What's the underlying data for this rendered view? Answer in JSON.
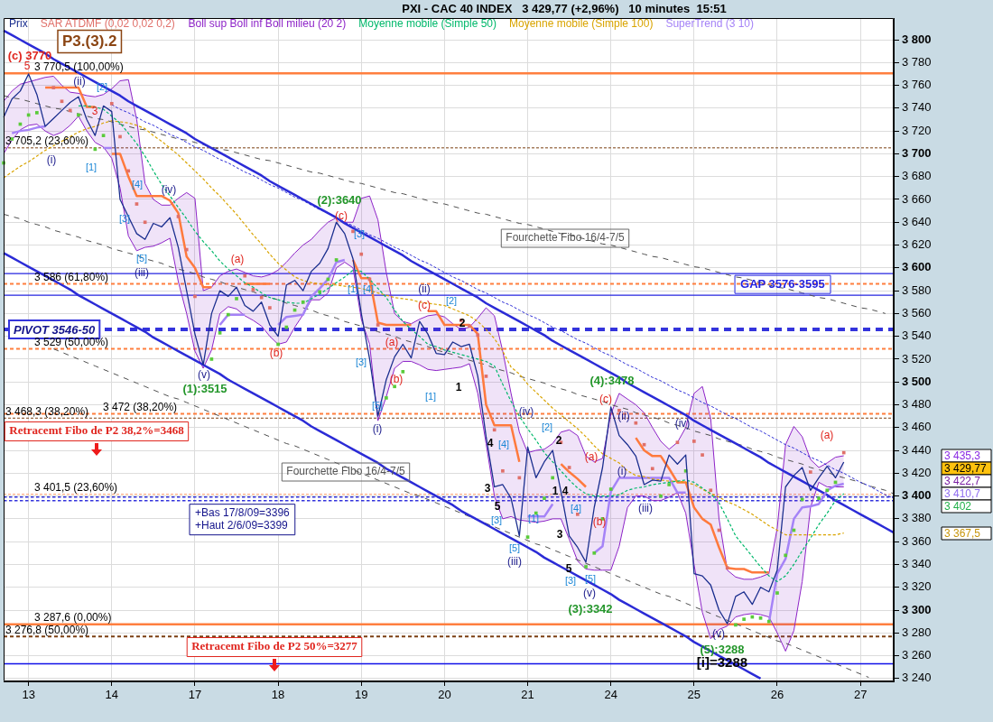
{
  "chart_data": {
    "type": "line",
    "title": "PXI - CAC 40 INDEX   3 429,77 (+2,96%)   10 minutes  15:51",
    "categories": [
      null,
      null,
      null,
      "13",
      null,
      null,
      null,
      null,
      null,
      null,
      null,
      null,
      null,
      "14",
      null,
      null,
      null,
      null,
      null,
      null,
      null,
      null,
      null,
      "17",
      null,
      null,
      null,
      null,
      null,
      null,
      null,
      null,
      null,
      "18",
      null,
      null,
      null,
      null,
      null,
      null,
      null,
      null,
      null,
      "19",
      null,
      null,
      null,
      null,
      null,
      null,
      null,
      null,
      null,
      "20",
      null,
      null,
      null,
      null,
      null,
      null,
      null,
      null,
      null,
      "21",
      null,
      null,
      null,
      null,
      null,
      null,
      null,
      null,
      null,
      "24",
      null,
      null,
      null,
      null,
      null,
      null,
      null,
      null,
      null,
      "25",
      null,
      null,
      null,
      null,
      null,
      null,
      null,
      null,
      null,
      "26",
      null,
      null,
      null,
      null,
      null,
      null,
      null,
      null,
      null,
      "27",
      null,
      null,
      null,
      null
    ],
    "ylim": [
      3237.5,
      3819
    ],
    "yticks": [
      {
        "value": 3240,
        "label": "3 240"
      },
      {
        "value": 3260,
        "label": "3 260"
      },
      {
        "value": 3280,
        "label": "3 280"
      },
      {
        "value": 3300,
        "label": "3 300"
      },
      {
        "value": 3320,
        "label": "3 320"
      },
      {
        "value": 3340,
        "label": "3 340"
      },
      {
        "value": 3360,
        "label": "3 360"
      },
      {
        "value": 3380,
        "label": "3 380"
      },
      {
        "value": 3400,
        "label": "3 400"
      },
      {
        "value": 3420,
        "label": "3 420"
      },
      {
        "value": 3440,
        "label": "3 440"
      },
      {
        "value": 3460,
        "label": "3 460"
      },
      {
        "value": 3480,
        "label": "3 480"
      },
      {
        "value": 3500,
        "label": "3 500"
      },
      {
        "value": 3520,
        "label": "3 520"
      },
      {
        "value": 3540,
        "label": "3 540"
      },
      {
        "value": 3560,
        "label": "3 560"
      },
      {
        "value": 3580,
        "label": "3 580"
      },
      {
        "value": 3600,
        "label": "3 600"
      },
      {
        "value": 3620,
        "label": "3 620"
      },
      {
        "value": 3640,
        "label": "3 640"
      },
      {
        "value": 3660,
        "label": "3 660"
      },
      {
        "value": 3680,
        "label": "3 680"
      },
      {
        "value": 3700,
        "label": "3 700"
      },
      {
        "value": 3720,
        "label": "3 720"
      },
      {
        "value": 3740,
        "label": "3 740"
      },
      {
        "value": 3760,
        "label": "3 760"
      },
      {
        "value": 3780,
        "label": "3 780"
      },
      {
        "value": 3800,
        "label": "3 800"
      }
    ],
    "grid": true,
    "legend": "top left",
    "marker": "none",
    "series": [
      {
        "name": "Prix",
        "color": "#1b2f8f",
        "values": [
          3732,
          3748,
          3755,
          3770,
          3752,
          3724,
          3731,
          3738,
          3745,
          3750,
          3730,
          3716,
          3742,
          3737,
          3660,
          3645,
          3630,
          3625,
          3639,
          3636,
          3644,
          3618,
          3580,
          3542,
          3515,
          3560,
          3580,
          3575,
          3583,
          3567,
          3562,
          3570,
          3550,
          3540,
          3585,
          3589,
          3580,
          3597,
          3604,
          3617,
          3640,
          3630,
          3608,
          3560,
          3520,
          3470,
          3502,
          3522,
          3533,
          3521,
          3553,
          3542,
          3525,
          3524,
          3535,
          3531,
          3533,
          3505,
          3452,
          3408,
          3410,
          3398,
          3365,
          3443,
          3416,
          3430,
          3440,
          3404,
          3365,
          3355,
          3342,
          3390,
          3425,
          3478,
          3453,
          3445,
          3435,
          3410,
          3414,
          3413,
          3436,
          3428,
          3436,
          3332,
          3330,
          3322,
          3300,
          3288,
          3312,
          3316,
          3305,
          3320,
          3316,
          3335,
          3408,
          3418,
          3425,
          3405,
          3416,
          3426,
          3416,
          3429.77,
          null,
          null,
          null,
          null,
          null,
          null
        ]
      },
      {
        "name": "SAR ATDMF (0,02 0,02 0,2)",
        "type": "scatter",
        "marker": "square",
        "color": "#e0706a",
        "values": [
          3692,
          3713,
          3726,
          3734,
          3736,
          null,
          3758,
          3746,
          3738,
          3734,
          null,
          3704,
          3716,
          3744,
          3715,
          3685,
          3656,
          3640,
          null,
          null,
          null,
          3645,
          3616,
          3575,
          null,
          3520,
          3543,
          3559,
          3573,
          3593,
          3581,
          3574,
          3565,
          3533,
          3548,
          3563,
          3570,
          null,
          3579,
          3590,
          3607,
          null,
          3632,
          3612,
          3590,
          3550,
          3486,
          3496,
          3509,
          null,
          null,
          null,
          null,
          null,
          null,
          3554,
          3549,
          3541,
          3505,
          3458,
          3422,
          null,
          3416,
          3364,
          3385,
          3398,
          3416,
          3447,
          3425,
          3384,
          3338,
          3350,
          3380,
          3406,
          3475,
          null,
          3464,
          3445,
          3424,
          3400,
          3410,
          3447,
          3422,
          3448,
          3436,
          3405,
          3370,
          3337,
          3287,
          3292,
          3294,
          3293,
          3290,
          3315,
          3348,
          3370,
          3397,
          3421,
          3398,
          3405,
          3412,
          3438,
          null,
          null,
          null,
          null,
          null,
          null
        ],
        "colors": [
          "#5acb3a",
          "#5acb3a",
          "#5acb3a",
          "#5acb3a",
          "#5acb3a",
          "#5acb3a",
          "#e0706a",
          "#e0706a",
          "#e0706a",
          "#5acb3a",
          "#5acb3a",
          "#5acb3a",
          "#5acb3a",
          "#e0706a",
          "#e0706a",
          "#e0706a",
          "#e0706a",
          "#e0706a",
          "#e0706a",
          "#e0706a",
          "#e0706a",
          "#e0706a",
          "#e0706a",
          "#e0706a",
          "#e0706a",
          "#5acb3a",
          "#5acb3a",
          "#5acb3a",
          "#5acb3a",
          "#e0706a",
          "#e0706a",
          "#e0706a",
          "#e0706a",
          "#5acb3a",
          "#5acb3a",
          "#5acb3a",
          "#5acb3a",
          "#5acb3a",
          "#5acb3a",
          "#5acb3a",
          "#5acb3a",
          "#e0706a",
          "#e0706a",
          "#e0706a",
          "#e0706a",
          "#e0706a",
          "#5acb3a",
          "#5acb3a",
          "#5acb3a",
          "#5acb3a",
          "#5acb3a",
          "#5acb3a",
          "#5acb3a",
          "#5acb3a",
          "#e0706a",
          "#e0706a",
          "#e0706a",
          "#e0706a",
          "#e0706a",
          "#e0706a",
          "#e0706a",
          "#5acb3a",
          "#e0706a",
          "#5acb3a",
          "#5acb3a",
          "#5acb3a",
          "#5acb3a",
          "#e0706a",
          "#e0706a",
          "#e0706a",
          "#5acb3a",
          "#5acb3a",
          "#5acb3a",
          "#5acb3a",
          "#e0706a",
          "#e0706a",
          "#e0706a",
          "#e0706a",
          "#e0706a",
          "#5acb3a",
          "#5acb3a",
          "#e0706a",
          "#5acb3a",
          "#e0706a",
          "#e0706a",
          "#e0706a",
          "#e0706a",
          "#e0706a",
          "#5acb3a",
          "#5acb3a",
          "#5acb3a",
          "#5acb3a",
          "#5acb3a",
          "#5acb3a",
          "#5acb3a",
          "#5acb3a",
          "#5acb3a",
          "#e0706a",
          "#5acb3a",
          "#5acb3a",
          "#5acb3a",
          "#e0706a",
          "#5acb3a",
          "#5acb3a",
          "#5acb3a",
          "#5acb3a",
          "#5acb3a",
          "#5acb3a"
        ]
      },
      {
        "name": "Boll sup Boll inf Boll milieu (20 2)",
        "color": "#8e24c8",
        "values": [
          3746,
          3755,
          3761,
          3763,
          3765,
          3767,
          3768,
          3760,
          3754,
          3753,
          3751,
          3750,
          3752,
          3757,
          3764,
          3765,
          3730,
          3674,
          3660,
          3655,
          3655,
          3661,
          3666,
          3661,
          3580,
          3583,
          3593,
          3597,
          3599,
          3596,
          3593,
          3592,
          3594,
          3598,
          3605,
          3613,
          3620,
          3625,
          3633,
          3640,
          3644,
          3640,
          3640,
          3661,
          3663,
          3642,
          3596,
          3560,
          3553,
          3551,
          3555,
          3558,
          3559,
          3557,
          3551,
          3546,
          3548,
          3556,
          3565,
          3558,
          3527,
          3490,
          3456,
          3438,
          3440,
          3441,
          3446,
          3456,
          3458,
          3453,
          3435,
          3430,
          3433,
          3472,
          3490,
          3485,
          3480,
          3473,
          3460,
          3448,
          3441,
          3447,
          3460,
          3490,
          3496,
          3468,
          3380,
          3335,
          3329,
          3327,
          3327,
          3329,
          3332,
          3372,
          3445,
          3461,
          3452,
          3432,
          3425,
          3429,
          3434,
          3435.3,
          null,
          null,
          null,
          null,
          null,
          null
        ],
        "upper": [
          3746,
          3755,
          3761,
          3763,
          3765,
          3767,
          3768,
          3760,
          3754,
          3753,
          3751,
          3750,
          3752,
          3757,
          3764,
          3765,
          3730,
          3674,
          3660,
          3655,
          3655,
          3661,
          3666,
          3661,
          3580,
          3583,
          3593,
          3597,
          3599,
          3596,
          3593,
          3592,
          3594,
          3598,
          3605,
          3613,
          3620,
          3625,
          3633,
          3640,
          3644,
          3640,
          3640,
          3661,
          3663,
          3642,
          3596,
          3560,
          3553,
          3551,
          3555,
          3558,
          3559,
          3557,
          3551,
          3546,
          3548,
          3556,
          3565,
          3558,
          3527,
          3490,
          3456,
          3438,
          3440,
          3441,
          3446,
          3456,
          3458,
          3453,
          3435,
          3430,
          3433,
          3472,
          3490,
          3485,
          3480,
          3473,
          3460,
          3448,
          3441,
          3447,
          3460,
          3490,
          3496,
          3468,
          3380,
          3335,
          3329,
          3327,
          3327,
          3329,
          3332,
          3372,
          3445,
          3461,
          3452,
          3432,
          3425,
          3429,
          3434,
          3435.3,
          null,
          null,
          null,
          null,
          null,
          null
        ],
        "lower": [
          3700,
          3712,
          3721,
          3725,
          3726,
          3720,
          3716,
          3719,
          3725,
          3733,
          3720,
          3710,
          3706,
          3696,
          3670,
          3628,
          3615,
          3618,
          3619,
          3622,
          3626,
          3588,
          3560,
          3527,
          3512,
          3528,
          3560,
          3566,
          3564,
          3558,
          3554,
          3549,
          3540,
          3533,
          3535,
          3548,
          3559,
          3572,
          3572,
          3578,
          3600,
          3605,
          3600,
          3555,
          3533,
          3466,
          3487,
          3512,
          3518,
          3518,
          3515,
          3511,
          3510,
          3511,
          3512,
          3513,
          3516,
          3490,
          3446,
          3400,
          3380,
          3382,
          3379,
          3378,
          3377,
          3378,
          3380,
          3380,
          3362,
          3343,
          3336,
          3335,
          3335,
          3335,
          3356,
          3390,
          3400,
          3400,
          3396,
          3396,
          3399,
          3403,
          3385,
          3340,
          3298,
          3275,
          3283,
          3286,
          3294,
          3296,
          3297,
          3296,
          3294,
          3280,
          3264,
          3282,
          3325,
          3390,
          3412,
          3408,
          3408,
          3408,
          null,
          null,
          null,
          null,
          null,
          null
        ]
      },
      {
        "color": "#8e24c8",
        "values": [
          3700,
          3712,
          3721,
          3725,
          3726,
          3720,
          3716,
          3719,
          3725,
          3733,
          3720,
          3710,
          3706,
          3696,
          3670,
          3628,
          3615,
          3618,
          3619,
          3622,
          3626,
          3588,
          3560,
          3527,
          3512,
          3528,
          3560,
          3566,
          3564,
          3558,
          3554,
          3549,
          3540,
          3533,
          3535,
          3548,
          3559,
          3572,
          3572,
          3578,
          3600,
          3605,
          3600,
          3555,
          3533,
          3466,
          3487,
          3512,
          3518,
          3518,
          3515,
          3511,
          3510,
          3511,
          3512,
          3513,
          3516,
          3490,
          3446,
          3400,
          3380,
          3382,
          3379,
          3378,
          3377,
          3378,
          3380,
          3380,
          3362,
          3343,
          3336,
          3335,
          3335,
          3335,
          3356,
          3390,
          3400,
          3400,
          3396,
          3396,
          3399,
          3403,
          3385,
          3340,
          3298,
          3275,
          3283,
          3286,
          3294,
          3296,
          3297,
          3296,
          3294,
          3280,
          3264,
          3282,
          3325,
          3390,
          3412,
          3408,
          3408,
          3408,
          null,
          null,
          null,
          null,
          null,
          null
        ]
      },
      {
        "name": "Moyenne mobile (Simple 50)",
        "color": "#00b86b",
        "line_style": "dotted",
        "values": [
          null,
          null,
          null,
          null,
          null,
          null,
          null,
          null,
          null,
          3742,
          3742,
          3741,
          3739,
          3733,
          3727,
          3718,
          3709,
          3698,
          3685,
          3673,
          3663,
          3653,
          3643,
          3632,
          3623,
          3615,
          3606,
          3599,
          3593,
          3587,
          3583,
          3578,
          3574,
          3572,
          3570,
          3569,
          3569,
          3573,
          3577,
          3582,
          3587,
          3592,
          3598,
          3597,
          3590,
          3582,
          3574,
          3563,
          3553,
          3546,
          3540,
          3533,
          3531,
          3528,
          3526,
          3524,
          3522,
          3520,
          3518,
          3514,
          3498,
          3483,
          3470,
          3459,
          3449,
          3438,
          3430,
          3422,
          3414,
          3407,
          3402,
          3400,
          3400,
          3400,
          3401,
          3405,
          3407,
          3408,
          3410,
          3411,
          3412,
          3413,
          3414,
          3412,
          3407,
          3402,
          3394,
          3380,
          3365,
          3356,
          3347,
          3338,
          3330,
          3325,
          3330,
          3340,
          3352,
          3363,
          3375,
          3385,
          3396,
          3402,
          null,
          null,
          null,
          null,
          null,
          null
        ]
      },
      {
        "name": "Moyenne mobile (Simple 100)",
        "color": "#d9a400",
        "line_style": "dotted",
        "values": [
          3679,
          3684,
          3689,
          3693,
          3698,
          3703,
          3707,
          3711,
          3715,
          3719,
          3722,
          3724,
          3727,
          3729,
          3728,
          3727,
          3725,
          3722,
          3716,
          3711,
          3705,
          3699,
          3692,
          3685,
          3678,
          3670,
          3663,
          3655,
          3647,
          3638,
          3629,
          3621,
          3612,
          3604,
          3598,
          3592,
          3589,
          3587,
          3586,
          3585,
          3585,
          3584,
          3583,
          3582,
          3580,
          3578,
          3576,
          3574,
          3573,
          3572,
          3570,
          3569,
          3568,
          3567,
          3564,
          3561,
          3558,
          3553,
          3546,
          3538,
          3527,
          3513,
          3507,
          3498,
          3491,
          3484,
          3477,
          3471,
          3465,
          3459,
          3452,
          3444,
          3437,
          3433,
          3429,
          3422,
          3418,
          3417,
          3415,
          3414,
          3413,
          3413,
          3412,
          3410,
          3406,
          3402,
          3399,
          3395,
          3392,
          3388,
          3384,
          3379,
          3374,
          3370,
          3366,
          3366,
          3366,
          3366,
          3366,
          3366,
          3366,
          3367.5,
          null,
          null,
          null,
          null,
          null,
          null
        ]
      },
      {
        "name": "SuperTrend (3 10)",
        "color": "#a583f7",
        "values": [
          null,
          3718,
          3720,
          3721,
          3723,
          3724,
          null,
          null,
          null,
          null,
          null,
          null,
          3705,
          3705,
          null,
          null,
          null,
          null,
          null,
          null,
          null,
          null,
          null,
          null,
          null,
          null,
          3550,
          3559,
          3559,
          3559,
          null,
          null,
          null,
          3550,
          3557,
          3558,
          3559,
          3575,
          3582,
          3590,
          3605,
          3607,
          null,
          null,
          null,
          null,
          null,
          null,
          null,
          null,
          null,
          null,
          null,
          null,
          null,
          null,
          null,
          null,
          null,
          null,
          null,
          null,
          null,
          3382,
          3382,
          3382,
          3393,
          null,
          null,
          null,
          null,
          3350,
          3356,
          3404,
          3416,
          3416,
          3416,
          3416,
          3416,
          3416,
          3416,
          3403,
          3403,
          null,
          null,
          null,
          null,
          null,
          null,
          null,
          null,
          null,
          3289,
          3332,
          3345,
          3380,
          3390,
          3391,
          3393,
          3405,
          3409,
          3410.7,
          null,
          null,
          null,
          null,
          null,
          null
        ]
      },
      {
        "color": "#ff7a3d",
        "values": [
          null,
          null,
          null,
          null,
          null,
          3758,
          3758,
          3758,
          3758,
          3758,
          3741,
          3741,
          null,
          3700,
          3700,
          3680,
          3663,
          3663,
          3663,
          3663,
          3659,
          3648,
          3610,
          3600,
          3583,
          3583,
          null,
          null,
          null,
          3586,
          3586,
          3586,
          3586,
          null,
          null,
          null,
          null,
          null,
          null,
          null,
          null,
          null,
          3607,
          3591,
          3591,
          3552,
          3550,
          3550,
          3550,
          3550,
          null,
          3562,
          3562,
          3550,
          3550,
          3550,
          3550,
          3542,
          3480,
          3462,
          3462,
          3462,
          3430,
          null,
          null,
          null,
          null,
          3428,
          3421,
          3415,
          3408,
          null,
          null,
          null,
          null,
          null,
          3451,
          3440,
          3435,
          3435,
          3424,
          3412,
          3412,
          3390,
          3380,
          3375,
          3355,
          3337,
          3336,
          3336,
          3333,
          3333,
          3333,
          null,
          null,
          null,
          null,
          null,
          null,
          null,
          null,
          null,
          null,
          null,
          null,
          null,
          null,
          null
        ]
      },
      {
        "color": "#2b2bd6",
        "line_style": "solid",
        "values": [
          3808,
          3804,
          3800,
          3796,
          3792,
          3788,
          3783,
          3779,
          3775,
          3771,
          3767,
          3763,
          3759,
          3755,
          3751,
          3746,
          3742,
          3738,
          3734,
          3730,
          3726,
          3722,
          3718,
          3713,
          3709,
          3705,
          3701,
          3697,
          3693,
          3689,
          3685,
          3681,
          3676,
          3672,
          3668,
          3664,
          3660,
          3656,
          3652,
          3648,
          3644,
          3639,
          3635,
          3631,
          3627,
          3623,
          3619,
          3615,
          3611,
          3606,
          3602,
          3598,
          3594,
          3590,
          3586,
          3582,
          3578,
          3574,
          3569,
          3565,
          3561,
          3557,
          3553,
          3549,
          3545,
          3541,
          3536,
          3532,
          3528,
          3524,
          3520,
          3516,
          3512,
          3508,
          3504,
          3499,
          3495,
          3491,
          3487,
          3483,
          3479,
          3475,
          3471,
          3466,
          3462,
          3458,
          3454,
          3450,
          3446,
          3442,
          3438,
          3434,
          3429,
          3425,
          3421,
          3417,
          3413,
          3409,
          3405,
          3401,
          3396,
          3392,
          3388,
          3384,
          3380,
          3376,
          3372,
          3368
        ]
      },
      {
        "color": "#2b2bd6",
        "line_style": "solid",
        "values": [
          3613,
          3609,
          3605,
          3601,
          3597,
          3593,
          3589,
          3585,
          3581,
          3576,
          3572,
          3568,
          3564,
          3560,
          3556,
          3552,
          3548,
          3544,
          3539,
          3535,
          3531,
          3527,
          3523,
          3519,
          3515,
          3511,
          3507,
          3502,
          3498,
          3494,
          3490,
          3486,
          3482,
          3478,
          3474,
          3470,
          3466,
          3461,
          3457,
          3453,
          3449,
          3445,
          3441,
          3437,
          3433,
          3429,
          3424,
          3420,
          3416,
          3412,
          3408,
          3404,
          3400,
          3396,
          3392,
          3387,
          3383,
          3379,
          3375,
          3371,
          3367,
          3363,
          3359,
          3355,
          3351,
          3346,
          3342,
          3338,
          3334,
          3330,
          3326,
          3322,
          3318,
          3314,
          3309,
          3305,
          3301,
          3297,
          3293,
          3289,
          3285,
          3281,
          3277,
          3272,
          3268,
          3264,
          3260,
          3256,
          3252,
          3248,
          3244,
          3240,
          null,
          null,
          null,
          null,
          null,
          null,
          null,
          null,
          null,
          null,
          null,
          null,
          null,
          null,
          null,
          null
        ]
      },
      {
        "color": "#2b2bd6",
        "line_style": "dotted",
        "values": [
          null,
          null,
          null,
          null,
          null,
          null,
          null,
          null,
          null,
          null,
          null,
          null,
          null,
          3743,
          3739,
          3736,
          3732,
          3728,
          3725,
          3721,
          3717,
          3714,
          3710,
          3706,
          3703,
          3699,
          3695,
          3692,
          3688,
          3684,
          3681,
          3677,
          3673,
          3670,
          3666,
          3662,
          3659,
          3655,
          3651,
          3648,
          3644,
          3640,
          3637,
          3633,
          3629,
          3626,
          3622,
          3618,
          3615,
          3611,
          3607,
          3604,
          3600,
          3596,
          3592,
          3589,
          3585,
          3581,
          3578,
          3574,
          3570,
          3567,
          3563,
          3559,
          3556,
          3552,
          3548,
          3545,
          3541,
          3537,
          3534,
          3530,
          3526,
          3523,
          3519,
          3515,
          3512,
          3508,
          3504,
          3501,
          3497,
          3493,
          3490,
          3486,
          3482,
          3479,
          3475,
          3471,
          3468,
          3464,
          3460,
          3457,
          3453,
          3449,
          3445,
          3442,
          3438,
          3434,
          3431,
          3427,
          3423,
          3420,
          3416,
          3412,
          3409,
          3405,
          3401,
          3398
        ]
      },
      {
        "color": "#505050",
        "line_style": "dashed",
        "values": [
          3751,
          3749,
          3748,
          3746,
          3744,
          3742,
          3740,
          3739,
          3737,
          3735,
          3733,
          3731,
          3730,
          3728,
          3726,
          3724,
          3722,
          3721,
          3719,
          3717,
          3715,
          3713,
          3712,
          3710,
          3708,
          3706,
          3704,
          3703,
          3701,
          3699,
          3697,
          3695,
          3694,
          3692,
          3690,
          3688,
          3686,
          3684,
          3683,
          3681,
          3679,
          3677,
          3675,
          3674,
          3672,
          3670,
          3668,
          3666,
          3665,
          3663,
          3661,
          3659,
          3657,
          3656,
          3654,
          3652,
          3650,
          3648,
          3647,
          3645,
          3643,
          3641,
          3639,
          3638,
          3636,
          3634,
          3632,
          3630,
          3629,
          3627,
          3625,
          3623,
          3621,
          3620,
          3618,
          3616,
          3614,
          3612,
          3610,
          3609,
          3607,
          3605,
          3603,
          3601,
          3600,
          3598,
          3596,
          3594,
          3592,
          3591,
          3589,
          3587,
          3585,
          3583,
          3582,
          3580,
          3578,
          3576,
          3574,
          3573,
          3571,
          3569,
          3567,
          3565,
          3564,
          3562,
          3560,
          null
        ]
      },
      {
        "color": "#505050",
        "line_style": "dashed",
        "values": [
          3647,
          3645,
          3643,
          3640,
          3638,
          3636,
          3633,
          3631,
          3629,
          3627,
          3624,
          3622,
          3620,
          3617,
          3615,
          3613,
          3611,
          3608,
          3606,
          3604,
          3601,
          3599,
          3597,
          3595,
          3592,
          3590,
          3588,
          3585,
          3583,
          3581,
          3579,
          3576,
          3574,
          3572,
          3569,
          3567,
          3565,
          3563,
          3560,
          3558,
          3556,
          3553,
          3551,
          3549,
          3547,
          3544,
          3542,
          3540,
          3537,
          3535,
          3533,
          3531,
          3528,
          3526,
          3524,
          3521,
          3519,
          3517,
          3515,
          3512,
          3510,
          3508,
          3505,
          3503,
          3501,
          3499,
          3496,
          3494,
          3492,
          3489,
          3487,
          3485,
          3483,
          3480,
          3478,
          3476,
          3473,
          3471,
          3469,
          3467,
          3464,
          3462,
          3460,
          3457,
          3455,
          3453,
          3450,
          3448,
          3446,
          3444,
          3441,
          3439,
          3437,
          3434,
          3432,
          3430,
          3428,
          3425,
          3423,
          3421,
          3418,
          3416,
          3414,
          3412,
          3409,
          3407,
          3405,
          3402
        ]
      },
      {
        "color": "#505050",
        "line_style": "dashed",
        "values": [
          null,
          null,
          null,
          null,
          null,
          null,
          3529,
          3526,
          3523,
          3520,
          3517,
          3514,
          3511,
          3508,
          3505,
          3502,
          3499,
          3496,
          3493,
          3490,
          3487,
          3485,
          3482,
          3479,
          3476,
          3473,
          3470,
          3467,
          3464,
          3461,
          3458,
          3455,
          3452,
          3449,
          3446,
          3444,
          3441,
          3438,
          3435,
          3432,
          3429,
          3426,
          3423,
          3420,
          3417,
          3414,
          3411,
          3408,
          3405,
          3402,
          3400,
          3397,
          3394,
          3391,
          3388,
          3385,
          3382,
          3379,
          3376,
          3373,
          3370,
          3367,
          3364,
          3361,
          3358,
          3356,
          3353,
          3350,
          3347,
          3344,
          3341,
          3338,
          3335,
          3332,
          3329,
          3326,
          3323,
          3320,
          3317,
          3314,
          3312,
          3309,
          3306,
          3303,
          3300,
          3297,
          3294,
          3291,
          3288,
          3285,
          3282,
          3279,
          3276,
          3273,
          3271,
          3268,
          3265,
          3262,
          3259,
          3256,
          3253,
          3250,
          3247,
          3244,
          3241,
          null,
          null,
          null
        ]
      }
    ],
    "ref_lines": [
      {
        "axis": "y",
        "value": 3770.5,
        "label": "3 770,5 (100,00%)",
        "color": "#ff7f3f",
        "line_style": "solid"
      },
      {
        "axis": "y",
        "value": 3705.2,
        "label": "3 705,2 (23,60%)",
        "color": "#7b3f12",
        "line_style": "dotted"
      },
      {
        "axis": "y",
        "value": 3595,
        "color": "#2424e0",
        "line_style": "solid"
      },
      {
        "axis": "y",
        "value": 3586,
        "label": "3 586 (61,80%)",
        "color": "#ff7f3f",
        "line_style": "dotted"
      },
      {
        "axis": "y",
        "value": 3576,
        "label": "GAP 3576-3595",
        "color": "#2424e0",
        "line_style": "solid"
      },
      {
        "axis": "y",
        "value": 3546,
        "label": "PIVOT 3546-50",
        "color": "#3434dc",
        "line_style": "dashed"
      },
      {
        "axis": "y",
        "value": 3529,
        "label": "3 529 (50,00%)",
        "color": "#ff7f3f",
        "line_style": "dotted"
      },
      {
        "axis": "y",
        "value": 3472,
        "label": "3 472 (38,20%)",
        "color": "#ff7f3f",
        "line_style": "dotted"
      },
      {
        "axis": "y",
        "value": 3468.3,
        "label": "3 468,3 (38,20%)",
        "color": "#7b3f12",
        "line_style": "dotted"
      },
      {
        "axis": "y",
        "value": 3401.5,
        "label": "3 401,5 (23,60%)",
        "color": "#ff9a66",
        "line_style": "dotted"
      },
      {
        "axis": "y",
        "value": 3396,
        "label": "+Bas 17/8/09=3396",
        "color": "#3434dc",
        "line_style": "dotted"
      },
      {
        "axis": "y",
        "value": 3399,
        "label": "+Haut 2/6/09=3399",
        "color": "#3434dc",
        "line_style": "dotted"
      },
      {
        "axis": "y",
        "value": 3287.6,
        "label": "3 287,6 (0,00%)",
        "color": "#ff7f3f",
        "line_style": "solid"
      },
      {
        "axis": "y",
        "value": 3276.8,
        "label": "3 276,8 (50,00%)",
        "color": "#7b3f12",
        "line_style": "dotted"
      },
      {
        "axis": "y",
        "value": 3253,
        "color": "#1010e8",
        "line_style": "solid"
      }
    ],
    "annotations": [
      "P3.(3).2",
      "(c) 3770",
      "5",
      "3",
      "(a)",
      "(b)",
      "(c)",
      "(a)",
      "(b)",
      "(c)",
      "(a)",
      "(b)",
      "(c)",
      "(a)",
      "(ii)",
      "(i)",
      "(iii)",
      "(iv)",
      "(v)",
      "(i)",
      "(ii)",
      "(iii)",
      "(iv)",
      "(v)",
      "(i)",
      "(ii)",
      "(iii)",
      "(iv)",
      "(v)",
      "[1]",
      "[2]",
      "[3]",
      "[4]",
      "[5]",
      "[3]",
      "[1]",
      "[4]",
      "[3]",
      "[5]",
      "[1]",
      "[2]",
      "[4]",
      "[3]",
      "[5]",
      "[2]",
      "[1]",
      "[4]",
      "[3]",
      "[5]",
      "(1):3515",
      "(2):3640",
      "(3):3342",
      "(4):3478",
      "(5):3288",
      "1",
      "2",
      "4",
      "3",
      "5",
      "2",
      "1",
      "4",
      "3",
      "5",
      "[i]=3288",
      "Fourchette Fibo 16/4-7/5",
      "Fourchette Fibo 16/4-7/5",
      "Retracemt Fibo de P2 38,2%=3468",
      "Retracemt Fibo de P2 50%=3277",
      "3 435,3",
      "3 429,77",
      "3 422,7",
      "3 410,7",
      "3 402",
      "3 367,5"
    ]
  }
}
